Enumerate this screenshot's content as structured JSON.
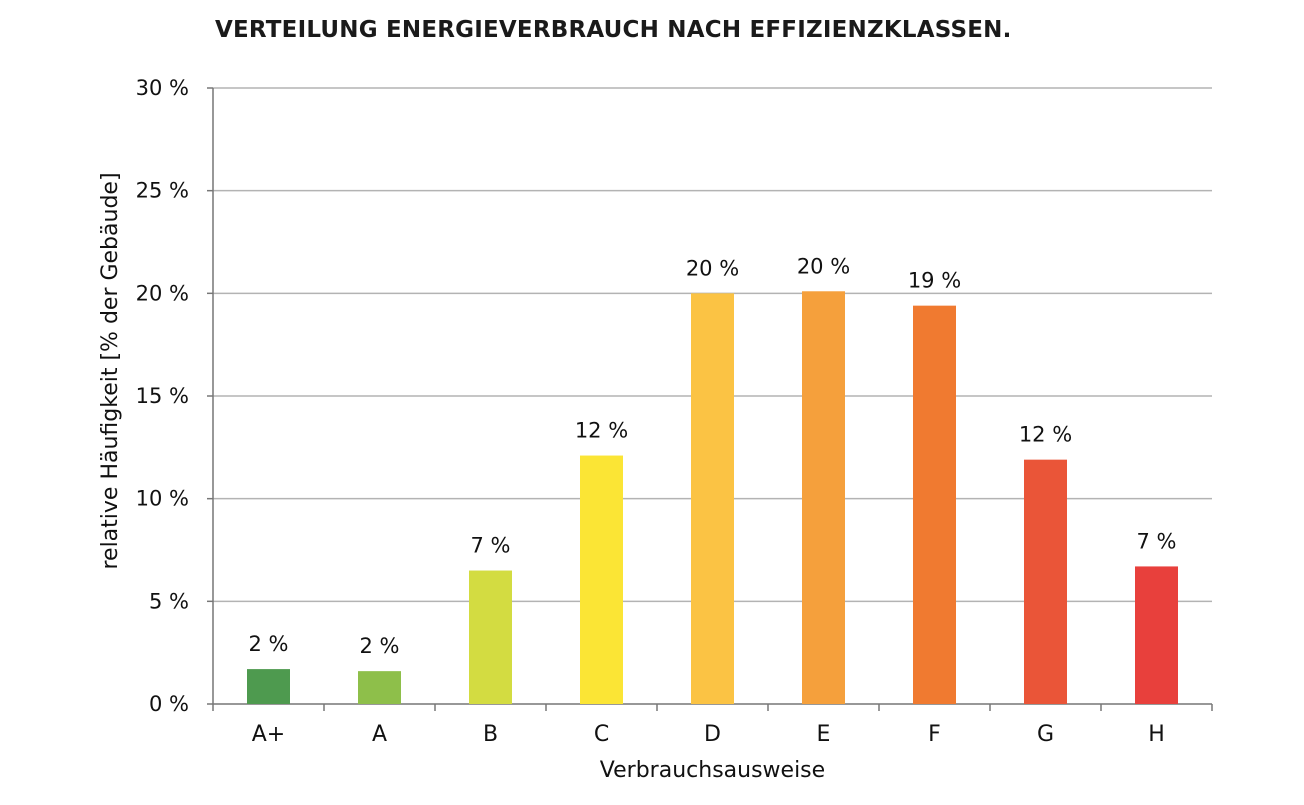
{
  "chart_data": {
    "type": "bar",
    "title": "VERTEILUNG ENERGIEVERBRAUCH NACH EFFIZIENZKLASSEN.",
    "xlabel": "Verbrauchsausweise",
    "ylabel": "relative Häufigkeit [% der Gebäude]",
    "categories": [
      "A+",
      "A",
      "B",
      "C",
      "D",
      "E",
      "F",
      "G",
      "H"
    ],
    "values": [
      1.7,
      1.6,
      6.5,
      12.1,
      20.0,
      20.1,
      19.4,
      11.9,
      6.7
    ],
    "data_labels": [
      "2 %",
      "2 %",
      "7 %",
      "12 %",
      "20 %",
      "20 %",
      "19 %",
      "12 %",
      "7 %"
    ],
    "bar_colors": [
      "#4e9a4f",
      "#8ebf4a",
      "#d3dc41",
      "#fbe535",
      "#fbc344",
      "#f5a03c",
      "#f07a30",
      "#ea5538",
      "#e8403c"
    ],
    "ylim": [
      0,
      30
    ],
    "yticks": [
      0,
      5,
      10,
      15,
      20,
      25,
      30
    ],
    "ytick_labels": [
      "0 %",
      "5 %",
      "10 %",
      "15 %",
      "20 %",
      "25 %",
      "30 %"
    ],
    "grid": true,
    "grid_color": "#b3b3b3",
    "legend": "none"
  }
}
